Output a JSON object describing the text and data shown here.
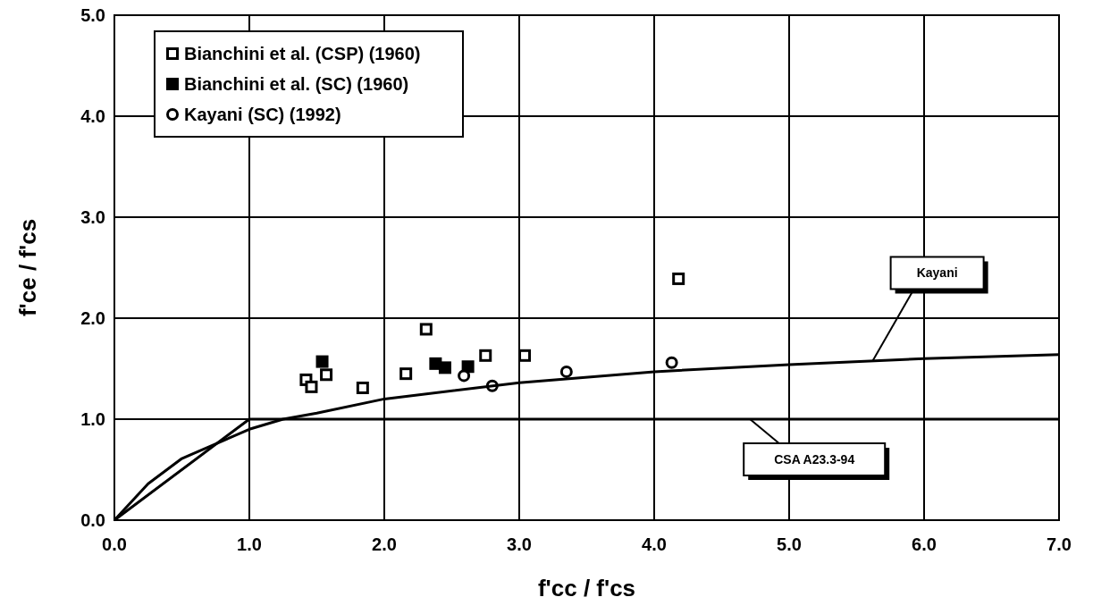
{
  "chart_data": {
    "type": "scatter",
    "xlabel": "f'cc / f'cs",
    "ylabel": "f'ce / f'cs",
    "xlim": [
      0,
      7
    ],
    "ylim": [
      0,
      5
    ],
    "xticks": [
      {
        "value": 0,
        "label": "0.0"
      },
      {
        "value": 1,
        "label": "1.0"
      },
      {
        "value": 2,
        "label": "2.0"
      },
      {
        "value": 3,
        "label": "3.0"
      },
      {
        "value": 4,
        "label": "4.0"
      },
      {
        "value": 5,
        "label": "5.0"
      },
      {
        "value": 6,
        "label": "6.0"
      },
      {
        "value": 7,
        "label": "7.0"
      }
    ],
    "yticks": [
      {
        "value": 0,
        "label": "0.0"
      },
      {
        "value": 1,
        "label": "1.0"
      },
      {
        "value": 2,
        "label": "2.0"
      },
      {
        "value": 3,
        "label": "3.0"
      },
      {
        "value": 4,
        "label": "4.0"
      },
      {
        "value": 5,
        "label": "5.0"
      }
    ],
    "grid": true,
    "legend": "top left",
    "series": [
      {
        "name": "Bianchini et al. (CSP) (1960)",
        "marker": "square-open",
        "color": "#000000",
        "x": [
          1.42,
          1.46,
          1.57,
          1.84,
          2.16,
          2.31,
          2.75,
          3.04,
          4.18
        ],
        "values": [
          1.39,
          1.32,
          1.44,
          1.31,
          1.45,
          1.89,
          1.63,
          1.63,
          2.39
        ]
      },
      {
        "name": "Bianchini et al. (SC) (1960)",
        "marker": "square",
        "color": "#000000",
        "x": [
          1.54,
          2.38,
          2.45,
          2.62
        ],
        "values": [
          1.57,
          1.55,
          1.51,
          1.52
        ]
      },
      {
        "name": "Kayani (SC) (1992)",
        "marker": "circle-open",
        "color": "#000000",
        "x": [
          2.59,
          2.8,
          3.35,
          4.13
        ],
        "values": [
          1.43,
          1.33,
          1.47,
          1.56
        ]
      },
      {
        "type": "line",
        "marker": "none",
        "color": "#000000",
        "x": [
          0,
          0.25,
          0.5,
          1,
          1.25,
          1.5,
          2,
          3,
          4,
          5,
          6,
          7
        ],
        "values": [
          0,
          0.36,
          0.61,
          0.9,
          1.0,
          1.06,
          1.2,
          1.36,
          1.47,
          1.54,
          1.6,
          1.64
        ]
      },
      {
        "type": "line",
        "marker": "none",
        "color": "#000000",
        "x": [
          0,
          1,
          7
        ],
        "values": [
          0,
          1,
          1
        ]
      }
    ],
    "annotations": [
      {
        "text": "Kayani",
        "x": 5.62,
        "y": 1.58
      },
      {
        "text": "CSA A23.3-94",
        "x": 4.71,
        "y": 1.0
      }
    ]
  }
}
